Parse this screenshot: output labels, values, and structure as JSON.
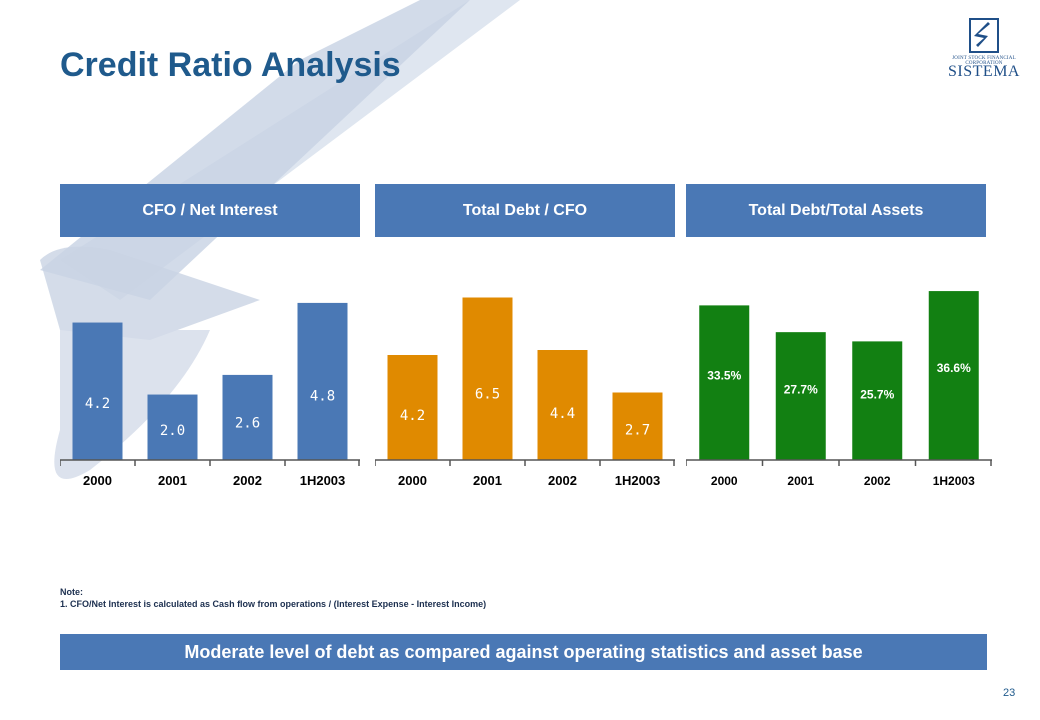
{
  "title": "Credit Ratio Analysis",
  "logo": {
    "line1": "JOINT STOCK FINANCIAL CORPORATION",
    "line2": "SISTEMA"
  },
  "colors": {
    "header": "#4a78b5",
    "blue_bar": "#4a78b5",
    "orange_bar": "#e08a00",
    "green_bar": "#128012",
    "title": "#1f5a8c"
  },
  "chart_data": [
    {
      "type": "bar",
      "title": "CFO / Net Interest",
      "categories": [
        "2000",
        "2001",
        "2002",
        "1H2003"
      ],
      "values": [
        4.2,
        2.0,
        2.6,
        4.8
      ],
      "labels": [
        "4.2",
        "2.0",
        "2.6",
        "4.8"
      ],
      "ylim": [
        0,
        5.5
      ],
      "color": "#4a78b5"
    },
    {
      "type": "bar",
      "title": "Total Debt / CFO",
      "categories": [
        "2000",
        "2001",
        "2002",
        "1H2003"
      ],
      "values": [
        4.2,
        6.5,
        4.4,
        2.7
      ],
      "labels": [
        "4.2",
        "6.5",
        "4.4",
        "2.7"
      ],
      "ylim": [
        0,
        7.2
      ],
      "color": "#e08a00"
    },
    {
      "type": "bar",
      "title": "Total Debt/Total Assets",
      "categories": [
        "2000",
        "2001",
        "2002",
        "1H2003"
      ],
      "values": [
        33.5,
        27.7,
        25.7,
        36.6
      ],
      "labels": [
        "33.5%",
        "27.7%",
        "25.7%",
        "36.6%"
      ],
      "ylim": [
        0,
        39
      ],
      "color": "#128012"
    }
  ],
  "note": {
    "title": "Note:",
    "text": "1. CFO/Net Interest is calculated as Cash flow from operations / (Interest Expense - Interest Income)"
  },
  "banner": "Moderate level of debt as compared against operating statistics and asset base",
  "page_number": "23"
}
